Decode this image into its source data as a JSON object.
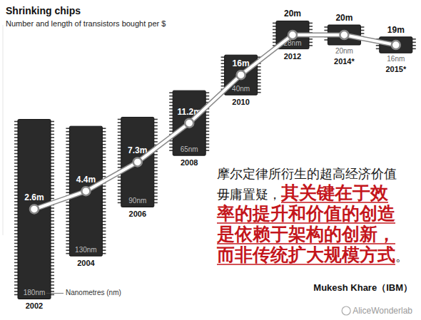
{
  "chart_data": {
    "type": "line",
    "title": "Shrinking chips",
    "subtitle": "Number and length of transistors bought per $",
    "categories": [
      "2002",
      "2004",
      "2006",
      "2008",
      "2010",
      "2012",
      "2014*",
      "2015*"
    ],
    "values": [
      2.6,
      4.4,
      7.3,
      11.2,
      16,
      20,
      20,
      19
    ],
    "value_labels": [
      "2.6m",
      "4.4m",
      "7.3m",
      "11.2m",
      "16m",
      "20m",
      "20m",
      "19m"
    ],
    "sizes": [
      180,
      130,
      90,
      65,
      40,
      28,
      20,
      16
    ],
    "size_labels": [
      "180nm",
      "130nm",
      "90nm",
      "65nm",
      "40nm",
      "28nm",
      "20nm",
      "16nm"
    ],
    "size_axis_label": "Nanometres (nm)",
    "ylim": [
      0,
      21
    ],
    "tick_labels": false,
    "data_labels": true,
    "marker": "circle",
    "annotation": [
      "摩尔定律所衍生的超高经济价值毋庸置疑，",
      "其关键在于效率的提升和价值的创造是依赖于架构的创新，而非传统扩大规模方式",
      "。"
    ],
    "source": "Mukesh Khare（IBM）",
    "watermark": "AliceWonderlab"
  }
}
